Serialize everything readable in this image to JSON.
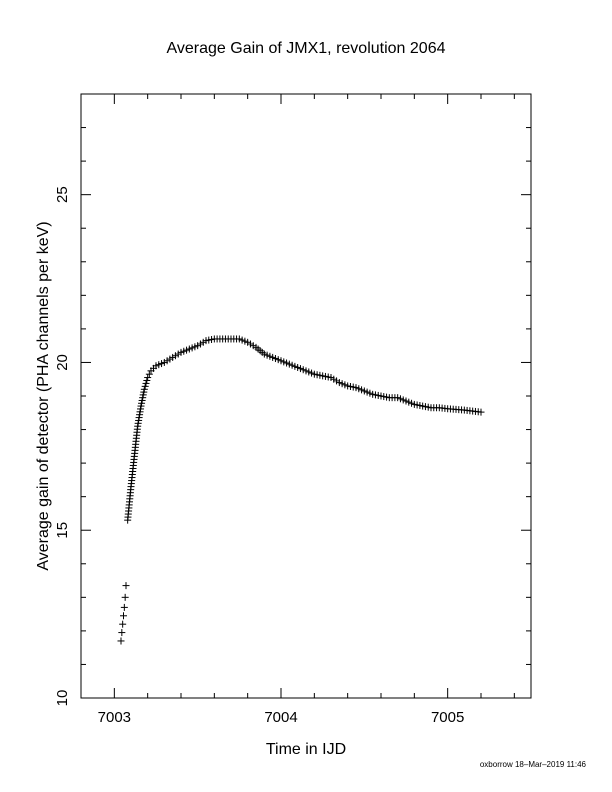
{
  "chart_data": {
    "type": "scatter",
    "title": "Average Gain of JMX1, revolution 2064",
    "xlabel": "Time in IJD",
    "ylabel": "Average gain of detector (PHA channels per keV)",
    "xlim": [
      7002.8,
      7005.5
    ],
    "ylim": [
      10,
      28
    ],
    "xticks": [
      7003,
      7004,
      7005
    ],
    "yticks": [
      10,
      15,
      20,
      25
    ],
    "xtick_labels": [
      "7003",
      "7004",
      "7005"
    ],
    "ytick_labels": [
      "10",
      "15",
      "20",
      "25"
    ],
    "marker": "plus",
    "series": [
      {
        "x": [
          7003.04,
          7003.045,
          7003.05,
          7003.055,
          7003.06,
          7003.065,
          7003.07
        ],
        "y": [
          11.7,
          11.95,
          12.2,
          12.45,
          12.7,
          13.0,
          13.35
        ]
      },
      {
        "x": [
          7003.08,
          7003.1,
          7003.12,
          7003.14,
          7003.16,
          7003.18,
          7003.2,
          7003.22,
          7003.25,
          7003.3,
          7003.35,
          7003.4,
          7003.45,
          7003.5,
          7003.55,
          7003.6,
          7003.65,
          7003.7,
          7003.75,
          7003.8,
          7003.85,
          7003.9,
          7003.95,
          7004.0,
          7004.05,
          7004.1,
          7004.15,
          7004.2,
          7004.25,
          7004.3,
          7004.35,
          7004.4,
          7004.45,
          7004.5,
          7004.55,
          7004.6,
          7004.65,
          7004.7,
          7004.75,
          7004.8,
          7004.85,
          7004.9,
          7004.95,
          7005.0,
          7005.05,
          7005.1,
          7005.15,
          7005.2
        ],
        "y": [
          15.3,
          16.3,
          17.2,
          18.1,
          18.7,
          19.2,
          19.55,
          19.75,
          19.9,
          20.0,
          20.15,
          20.3,
          20.4,
          20.5,
          20.65,
          20.7,
          20.7,
          20.7,
          20.7,
          20.6,
          20.45,
          20.25,
          20.15,
          20.05,
          19.95,
          19.85,
          19.75,
          19.65,
          19.6,
          19.55,
          19.4,
          19.3,
          19.25,
          19.15,
          19.05,
          19.0,
          18.95,
          18.95,
          18.85,
          18.75,
          18.7,
          18.65,
          18.65,
          18.62,
          18.6,
          18.58,
          18.55,
          18.52
        ]
      }
    ]
  },
  "footer": {
    "stamp": "oxborrow 18–Mar–2019 11:46"
  }
}
